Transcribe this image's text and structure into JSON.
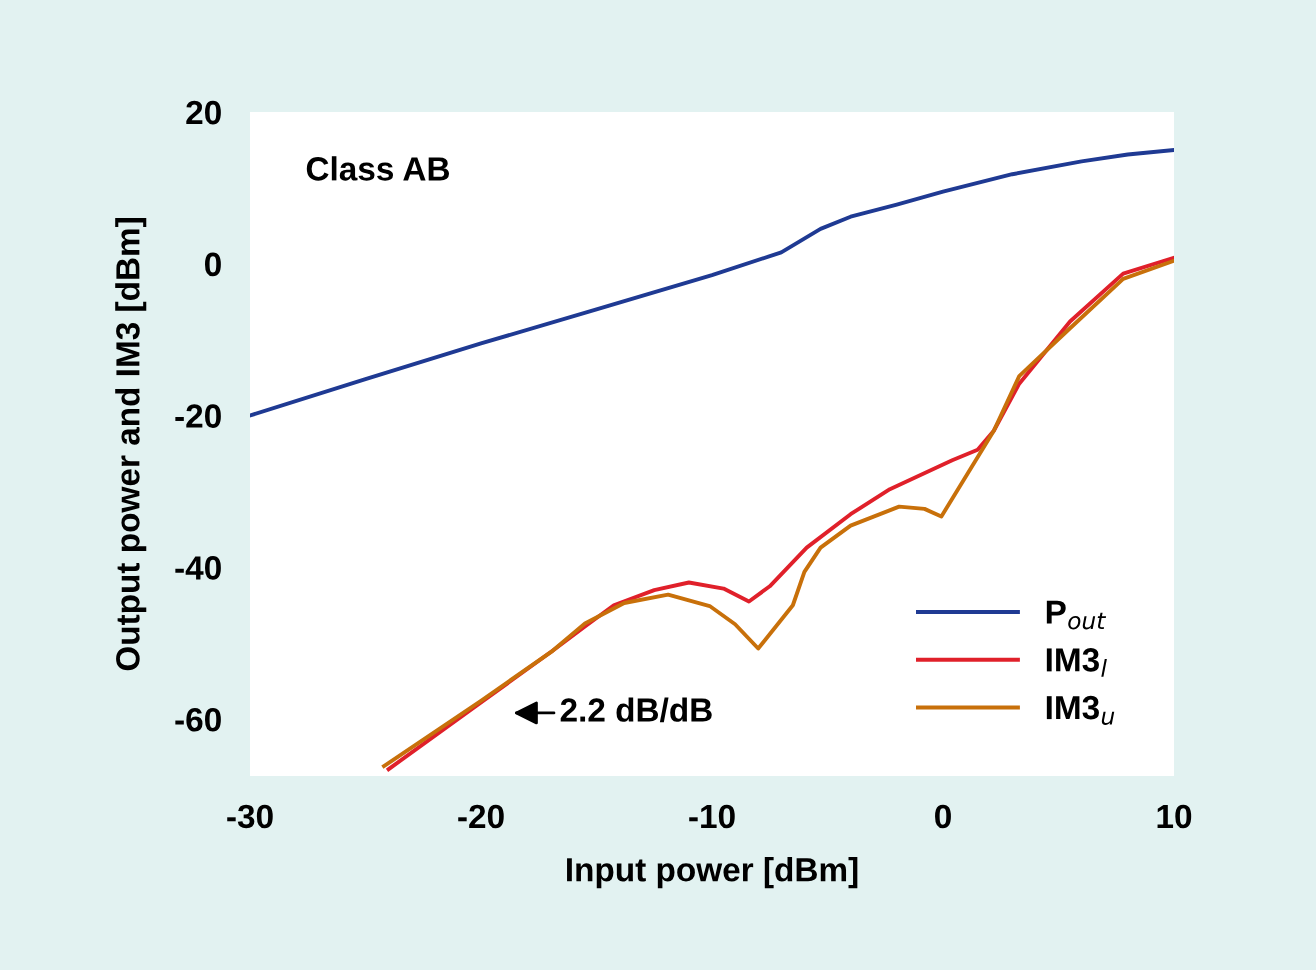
{
  "chart_data": {
    "type": "line",
    "xlabel": "Input power [dBm]",
    "ylabel": "Output power and IM3 [dBm]",
    "xlim": [
      -30,
      10
    ],
    "ylim": [
      -67.5,
      20
    ],
    "xticks": [
      -30,
      -20,
      -10,
      0,
      10
    ],
    "yticks": [
      20,
      0,
      -20,
      -40,
      -60
    ],
    "grid": false,
    "legend": "bottom right",
    "marker": "none",
    "line_style": "solid",
    "annotations": [
      "Class AB",
      "2.2 dB/dB"
    ],
    "series": [
      {
        "name": "P$_{out}$",
        "color": "#1f3a93",
        "x": [
          -30,
          -25,
          -20,
          -15,
          -10,
          -7,
          -5.3,
          -4,
          -2,
          0,
          3,
          6,
          8,
          10
        ],
        "values": [
          -20,
          -15.2,
          -10.5,
          -6,
          -1.5,
          1.5,
          4.6,
          6.2,
          7.8,
          9.5,
          11.8,
          13.5,
          14.4,
          15
        ]
      },
      {
        "name": "IM3$_{l}$",
        "color": "#e0202a",
        "x": [
          -24,
          -20,
          -16.9,
          -15.5,
          -14.25,
          -12.5,
          -11,
          -9.5,
          -8.4,
          -7.5,
          -5.9,
          -4,
          -2.3,
          0.4,
          1.5,
          2.2,
          3.3,
          5.5,
          7.8,
          10
        ],
        "values": [
          -66.6,
          -57.8,
          -51,
          -47.8,
          -45,
          -43,
          -42,
          -42.8,
          -44.5,
          -42.5,
          -37.4,
          -33,
          -29.7,
          -25.9,
          -24.5,
          -22,
          -15.8,
          -7.6,
          -1.3,
          0.8
        ]
      },
      {
        "name": "IM3$_{u}$",
        "color": "#c8700a",
        "x": [
          -24.2,
          -20,
          -16.9,
          -15.5,
          -13.8,
          -11.9,
          -10.1,
          -9,
          -8,
          -6.5,
          -6,
          -5.3,
          -4,
          -1.9,
          -0.8,
          -0.07,
          2.2,
          3.3,
          5.5,
          7.8,
          10
        ],
        "values": [
          -66.2,
          -57.6,
          -51,
          -47.4,
          -44.7,
          -43.6,
          -45.1,
          -47.5,
          -50.7,
          -45,
          -40.6,
          -37.4,
          -34.5,
          -32,
          -32.3,
          -33.3,
          -22,
          -14.8,
          -8.5,
          -2,
          0.4
        ]
      }
    ]
  }
}
